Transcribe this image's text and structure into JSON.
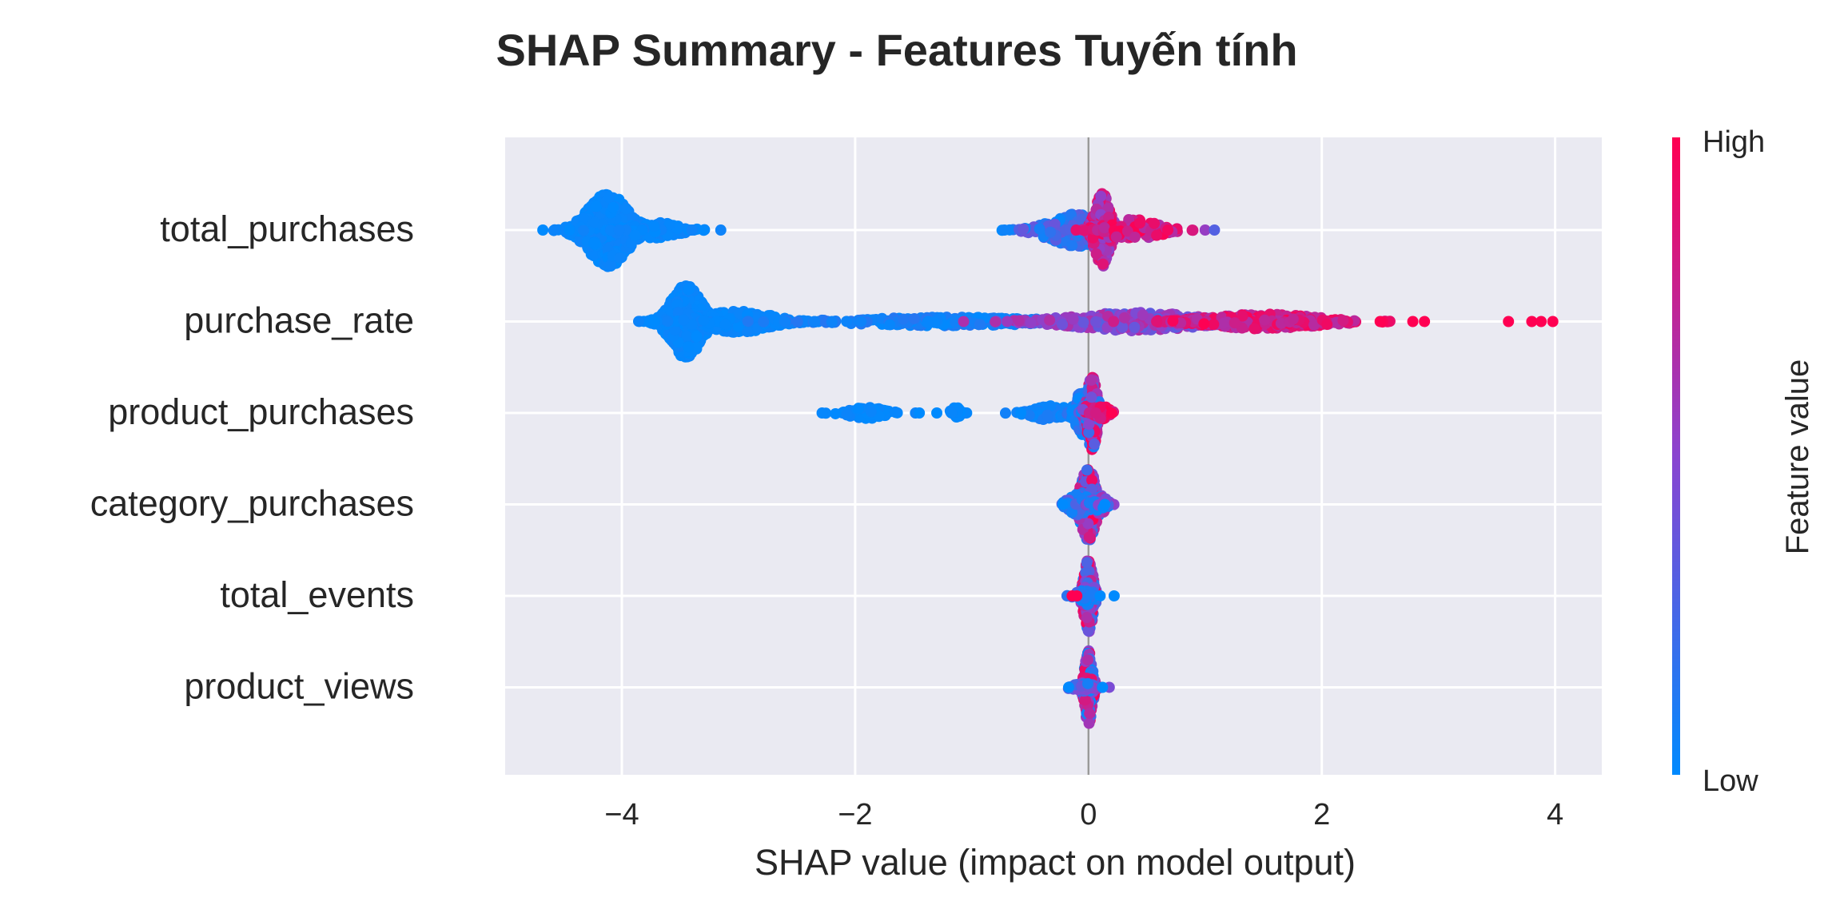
{
  "chart_data": {
    "type": "scatter",
    "subtype": "shap-beeswarm",
    "title": "SHAP Summary - Features Tuyến tính",
    "xlabel": "SHAP value (impact on model output)",
    "ylabel": "",
    "xlim": [
      -5.0,
      4.4
    ],
    "x_ticks": [
      -4,
      -2,
      0,
      2,
      4
    ],
    "x_tick_labels": [
      "−4",
      "−2",
      "0",
      "2",
      "4"
    ],
    "grid": true,
    "zero_line": 0,
    "colors": {
      "background": "#EAEAF2",
      "grid": "#FFFFFF",
      "low": "#008AFE",
      "mid": "#8A44D0",
      "high": "#FF0052",
      "text": "#262626"
    },
    "colorbar": {
      "label": "Feature value",
      "high_label": "High",
      "low_label": "Low",
      "position": "right"
    },
    "features": [
      {
        "name": "total_purchases",
        "clusters": [
          {
            "center": -4.12,
            "spread": 0.16,
            "height": 1.0,
            "count": 520,
            "color_lo": 0.0,
            "color_hi": 0.05
          },
          {
            "center": -3.72,
            "spread": 0.18,
            "height": 0.22,
            "count": 90,
            "color_lo": 0.0,
            "color_hi": 0.05
          },
          {
            "center": -0.1,
            "spread": 0.22,
            "height": 0.45,
            "count": 300,
            "color_lo": 0.0,
            "color_hi": 0.4
          },
          {
            "center": 0.12,
            "spread": 0.06,
            "height": 1.0,
            "count": 220,
            "color_lo": 0.5,
            "color_hi": 1.0
          },
          {
            "center": 0.4,
            "spread": 0.18,
            "height": 0.3,
            "count": 90,
            "color_lo": 0.6,
            "color_hi": 1.0
          }
        ],
        "outliers": [
          [
            -4.45,
            0.0
          ],
          [
            -3.4,
            0.05
          ],
          [
            -0.72,
            0.05
          ],
          [
            0.68,
            0.95
          ],
          [
            1.0,
            0.55
          ],
          [
            1.08,
            0.3
          ]
        ]
      },
      {
        "name": "purchase_rate",
        "clusters": [
          {
            "center": -3.45,
            "spread": 0.12,
            "height": 1.0,
            "count": 620,
            "color_lo": 0.0,
            "color_hi": 0.05
          },
          {
            "center": -3.0,
            "spread": 0.25,
            "height": 0.3,
            "count": 200,
            "color_lo": 0.0,
            "color_hi": 0.05
          },
          {
            "center": -1.2,
            "spread": 0.7,
            "height": 0.12,
            "count": 280,
            "color_lo": 0.0,
            "color_hi": 0.15
          },
          {
            "center": 0.4,
            "spread": 0.5,
            "height": 0.25,
            "count": 320,
            "color_lo": 0.3,
            "color_hi": 0.7
          },
          {
            "center": 1.5,
            "spread": 0.45,
            "height": 0.2,
            "count": 300,
            "color_lo": 0.65,
            "color_hi": 1.0
          }
        ],
        "outliers": [
          [
            -3.72,
            0.0
          ],
          [
            -2.35,
            0.05
          ],
          [
            -2.2,
            0.05
          ],
          [
            -1.95,
            0.05
          ],
          [
            2.5,
            1.0
          ],
          [
            2.78,
            1.0
          ],
          [
            2.88,
            1.0
          ],
          [
            3.6,
            1.0
          ],
          [
            3.8,
            1.0
          ],
          [
            3.88,
            1.0
          ],
          [
            3.98,
            1.0
          ]
        ]
      },
      {
        "name": "product_purchases",
        "clusters": [
          {
            "center": -1.9,
            "spread": 0.14,
            "height": 0.15,
            "count": 90,
            "color_lo": 0.0,
            "color_hi": 0.05
          },
          {
            "center": -1.14,
            "spread": 0.03,
            "height": 0.18,
            "count": 25,
            "color_lo": 0.0,
            "color_hi": 0.05
          },
          {
            "center": -0.32,
            "spread": 0.14,
            "height": 0.2,
            "count": 80,
            "color_lo": 0.0,
            "color_hi": 0.1
          },
          {
            "center": -0.06,
            "spread": 0.05,
            "height": 0.6,
            "count": 150,
            "color_lo": 0.0,
            "color_hi": 0.2
          },
          {
            "center": 0.03,
            "spread": 0.04,
            "height": 1.0,
            "count": 220,
            "color_lo": 0.0,
            "color_hi": 1.0
          },
          {
            "center": 0.12,
            "spread": 0.05,
            "height": 0.2,
            "count": 40,
            "color_lo": 0.7,
            "color_hi": 1.0
          }
        ],
        "outliers": [
          [
            -1.45,
            0.0
          ],
          [
            -1.3,
            0.0
          ],
          [
            -0.58,
            0.0
          ],
          [
            0.2,
            1.0
          ]
        ]
      },
      {
        "name": "category_purchases",
        "clusters": [
          {
            "center": 0.0,
            "spread": 0.06,
            "height": 1.0,
            "count": 300,
            "color_lo": 0.0,
            "color_hi": 1.0
          },
          {
            "center": -0.08,
            "spread": 0.08,
            "height": 0.3,
            "count": 90,
            "color_lo": 0.0,
            "color_hi": 0.4
          },
          {
            "center": 0.1,
            "spread": 0.05,
            "height": 0.25,
            "count": 60,
            "color_lo": 0.0,
            "color_hi": 0.7
          }
        ],
        "outliers": [
          [
            -0.22,
            0.0
          ],
          [
            0.14,
            0.0
          ]
        ]
      },
      {
        "name": "total_events",
        "clusters": [
          {
            "center": 0.0,
            "spread": 0.035,
            "height": 1.0,
            "count": 280,
            "color_lo": 0.0,
            "color_hi": 1.0
          },
          {
            "center": -0.04,
            "spread": 0.06,
            "height": 0.15,
            "count": 40,
            "color_lo": 0.0,
            "color_hi": 0.3
          }
        ],
        "outliers": [
          [
            -0.14,
            1.0
          ],
          [
            -0.1,
            1.0
          ],
          [
            0.22,
            0.0
          ],
          [
            0.1,
            0.0
          ]
        ]
      },
      {
        "name": "product_views",
        "clusters": [
          {
            "center": 0.0,
            "spread": 0.03,
            "height": 1.0,
            "count": 300,
            "color_lo": 0.0,
            "color_hi": 1.0
          },
          {
            "center": -0.04,
            "spread": 0.08,
            "height": 0.12,
            "count": 50,
            "color_lo": 0.0,
            "color_hi": 0.6
          }
        ],
        "outliers": [
          [
            -0.17,
            0.0
          ],
          [
            0.12,
            0.0
          ]
        ]
      }
    ]
  }
}
